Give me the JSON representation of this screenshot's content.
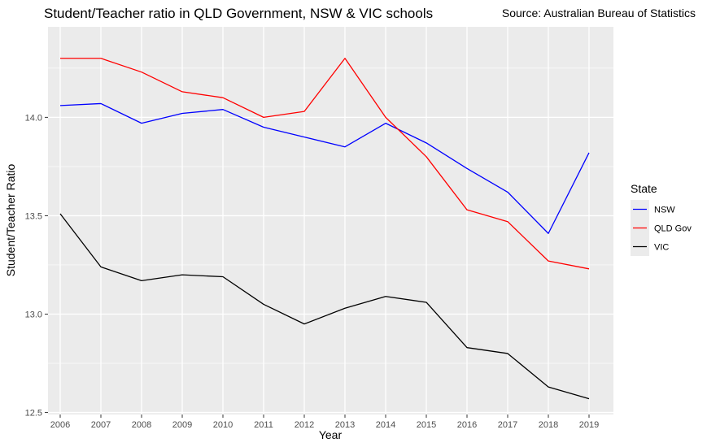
{
  "chart_data": {
    "type": "line",
    "title": "Student/Teacher ratio in QLD Government, NSW & VIC schools",
    "subtitle": "Source: Australian Bureau of Statistics",
    "xlabel": "Year",
    "ylabel": "Student/Teacher Ratio",
    "x": [
      2006,
      2007,
      2008,
      2009,
      2010,
      2011,
      2012,
      2013,
      2014,
      2015,
      2016,
      2017,
      2018,
      2019
    ],
    "x_ticks": [
      "2006",
      "2007",
      "2008",
      "2009",
      "2010",
      "2011",
      "2012",
      "2013",
      "2014",
      "2015",
      "2016",
      "2017",
      "2018",
      "2019"
    ],
    "y_ticks": [
      "12.5",
      "13.0",
      "13.5",
      "14.0"
    ],
    "y_tick_values": [
      12.5,
      13.0,
      13.5,
      14.0
    ],
    "xlim": [
      2005.7,
      2019.6
    ],
    "ylim": [
      12.49,
      14.46
    ],
    "grid": true,
    "legend": {
      "title": "State",
      "placement": "right"
    },
    "series": [
      {
        "name": "NSW",
        "color": "#0000ff",
        "values": [
          14.06,
          14.07,
          13.97,
          14.02,
          14.04,
          13.95,
          13.9,
          13.85,
          13.97,
          13.87,
          13.74,
          13.62,
          13.41,
          13.82
        ]
      },
      {
        "name": "QLD Gov",
        "color": "#ff0000",
        "values": [
          14.3,
          14.3,
          14.23,
          14.13,
          14.1,
          14.0,
          14.03,
          14.3,
          14.0,
          13.8,
          13.53,
          13.47,
          13.27,
          13.23
        ]
      },
      {
        "name": "VIC",
        "color": "#000000",
        "values": [
          13.51,
          13.24,
          13.17,
          13.2,
          13.19,
          13.05,
          12.95,
          13.03,
          13.09,
          13.06,
          12.83,
          12.8,
          12.63,
          12.57
        ]
      }
    ]
  }
}
